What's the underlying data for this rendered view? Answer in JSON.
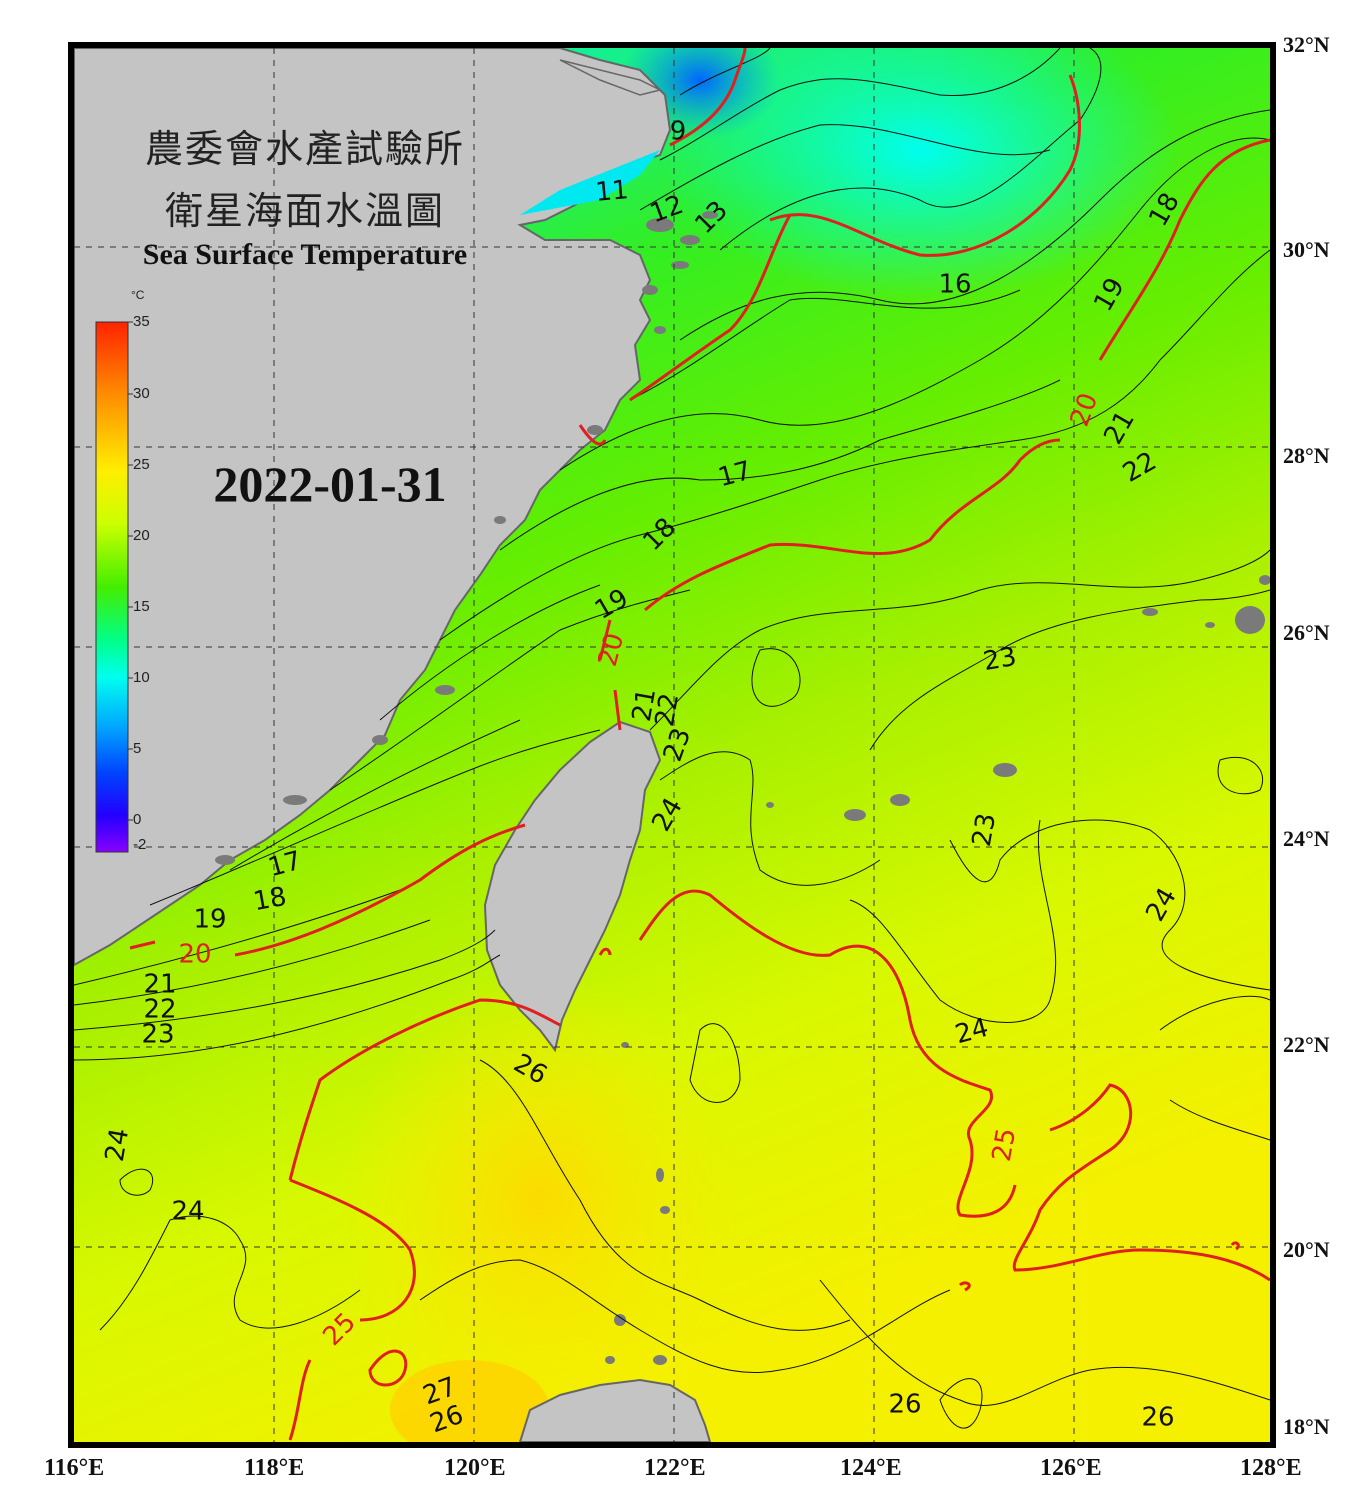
{
  "title": {
    "line1": "農委會水產試驗所",
    "line2": "衛星海面水溫圖",
    "english": "Sea Surface Temperature"
  },
  "date": "2022-01-31",
  "colorbar": {
    "unit": "°C",
    "ticks": [
      "35",
      "30",
      "25",
      "20",
      "15",
      "10",
      "5",
      "0",
      "-2"
    ],
    "colors": [
      "#ff2200",
      "#ff8800",
      "#ffee00",
      "#ccff00",
      "#44ee00",
      "#00ff88",
      "#00ffee",
      "#00aaff",
      "#0044ff",
      "#2200ff",
      "#8800ff"
    ]
  },
  "axes": {
    "lat_labels": [
      "32°N",
      "30°N",
      "28°N",
      "26°N",
      "24°N",
      "22°N",
      "20°N",
      "18°N"
    ],
    "lon_labels": [
      "116°E",
      "118°E",
      "120°E",
      "122°E",
      "124°E",
      "126°E",
      "128°E"
    ]
  },
  "contour_labels": [
    {
      "text": "9",
      "color": "black"
    },
    {
      "text": "11",
      "color": "black"
    },
    {
      "text": "12",
      "color": "black"
    },
    {
      "text": "13",
      "color": "black"
    },
    {
      "text": "16",
      "color": "black"
    },
    {
      "text": "18",
      "color": "black"
    },
    {
      "text": "19",
      "color": "black"
    },
    {
      "text": "20",
      "color": "red"
    },
    {
      "text": "21",
      "color": "black"
    },
    {
      "text": "22",
      "color": "black"
    },
    {
      "text": "17",
      "color": "black"
    },
    {
      "text": "18",
      "color": "black"
    },
    {
      "text": "19",
      "color": "black"
    },
    {
      "text": "20",
      "color": "red"
    },
    {
      "text": "21",
      "color": "black"
    },
    {
      "text": "22",
      "color": "black"
    },
    {
      "text": "23",
      "color": "black"
    },
    {
      "text": "23",
      "color": "black"
    },
    {
      "text": "24",
      "color": "black"
    },
    {
      "text": "23",
      "color": "black"
    },
    {
      "text": "17",
      "color": "black"
    },
    {
      "text": "18",
      "color": "black"
    },
    {
      "text": "19",
      "color": "black"
    },
    {
      "text": "20",
      "color": "red"
    },
    {
      "text": "21",
      "color": "black"
    },
    {
      "text": "22",
      "color": "black"
    },
    {
      "text": "23",
      "color": "black"
    },
    {
      "text": "24",
      "color": "black"
    },
    {
      "text": "24",
      "color": "black"
    },
    {
      "text": "26",
      "color": "black"
    },
    {
      "text": "25",
      "color": "red"
    },
    {
      "text": "24",
      "color": "black"
    },
    {
      "text": "24",
      "color": "black"
    },
    {
      "text": "25",
      "color": "red"
    },
    {
      "text": "26",
      "color": "black"
    },
    {
      "text": "27",
      "color": "black"
    },
    {
      "text": "26",
      "color": "black"
    },
    {
      "text": "26",
      "color": "black"
    }
  ]
}
